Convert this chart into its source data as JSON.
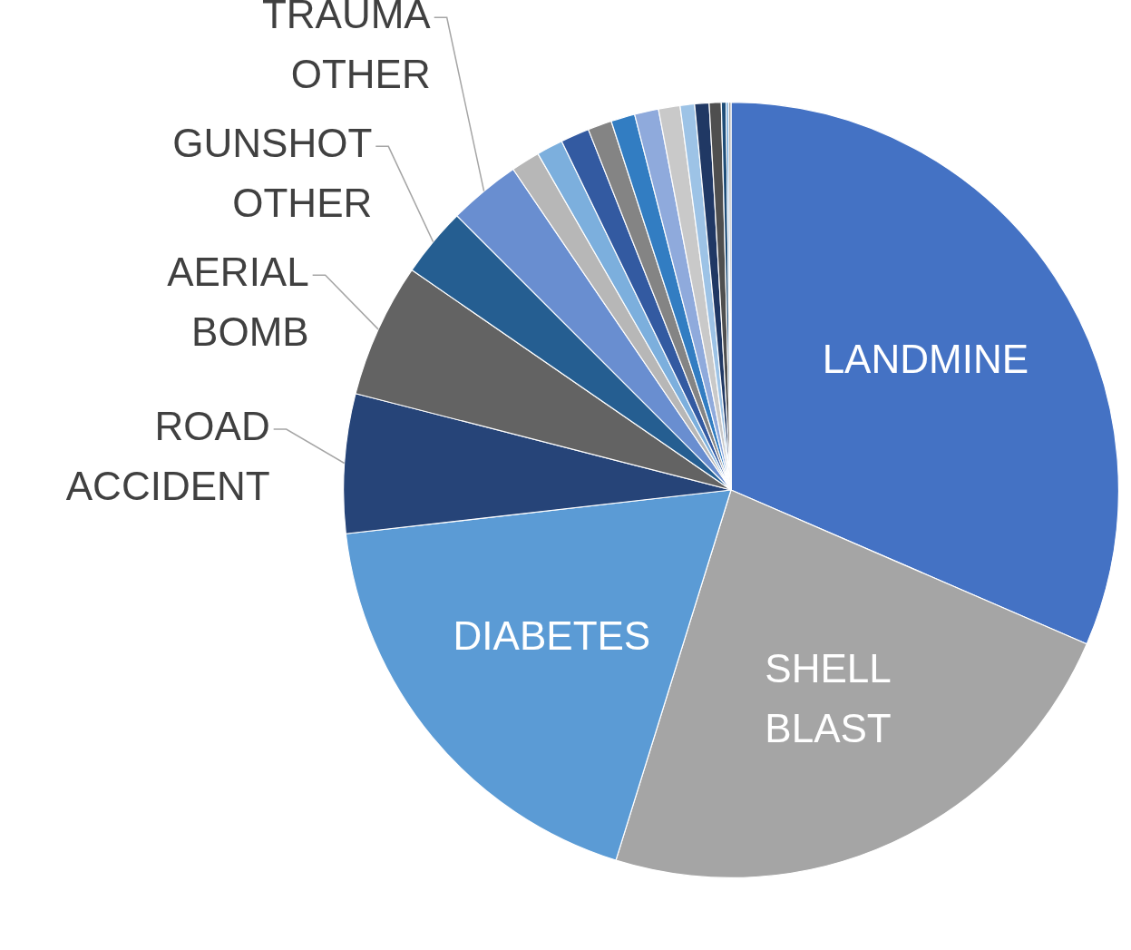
{
  "chart_data": {
    "type": "pie",
    "categories": [
      "LANDMINE",
      "SHELL BLAST",
      "DIABETES",
      "ROAD ACCIDENT",
      "AERIAL BOMB",
      "GUNSHOT OTHER",
      "TRAUMA OTHER",
      null,
      null,
      null,
      null,
      null,
      null,
      null,
      null,
      null,
      null,
      null,
      null,
      null
    ],
    "values": [
      31.5,
      23.3,
      18.4,
      5.8,
      5.6,
      2.9,
      3.0,
      1.2,
      1.1,
      1.2,
      1.0,
      1.0,
      1.0,
      0.9,
      0.6,
      0.6,
      0.5,
      0.2,
      0.1,
      0.1
    ],
    "colors": [
      "#4472c4",
      "#a5a5a5",
      "#5b9bd5",
      "#264478",
      "#636363",
      "#255e91",
      "#698ed0",
      "#b7b7b7",
      "#7cafdd",
      "#335aa1",
      "#848484",
      "#327dc2",
      "#8faadc",
      "#c9c9c9",
      "#9dc3e6",
      "#203864",
      "#4f4f4f",
      "#1f4e79",
      "#5b9bd5",
      "#a5a5a5"
    ],
    "legend": false
  }
}
